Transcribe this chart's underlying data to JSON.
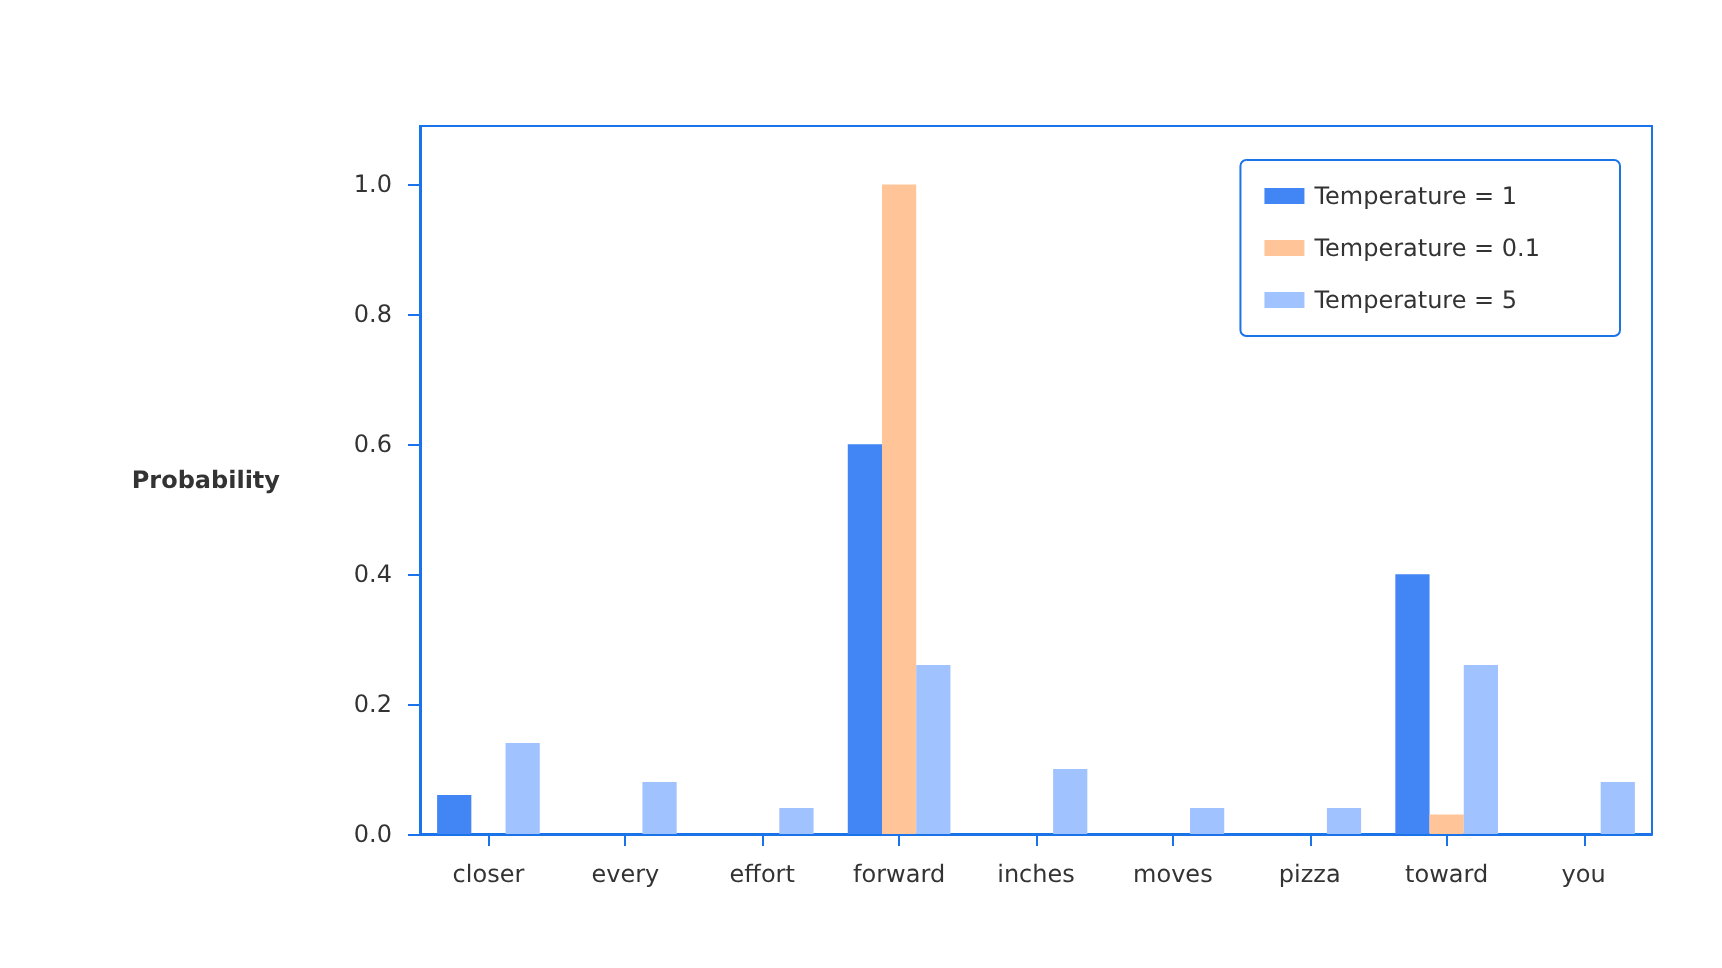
{
  "chart_data": {
    "type": "bar",
    "ylabel": "Probability",
    "categories": [
      "closer",
      "every",
      "effort",
      "forward",
      "inches",
      "moves",
      "pizza",
      "toward",
      "you"
    ],
    "series": [
      {
        "name": "Temperature = 1",
        "color": "#4285f4",
        "values": [
          0.06,
          0,
          0,
          0.6,
          0,
          0,
          0,
          0.4,
          0
        ]
      },
      {
        "name": "Temperature = 0.1",
        "color": "#ffc599",
        "values": [
          0,
          0,
          0,
          1.0,
          0,
          0,
          0,
          0.03,
          0
        ]
      },
      {
        "name": "Temperature = 5",
        "color": "#a0c3ff",
        "values": [
          0.14,
          0.08,
          0.04,
          0.26,
          0.1,
          0.04,
          0.04,
          0.26,
          0.08
        ]
      }
    ],
    "ylim": [
      0,
      1.09
    ],
    "yticks": [
      {
        "value": 0,
        "label": "0.0"
      },
      {
        "value": 0.2,
        "label": "0.2"
      },
      {
        "value": 0.4,
        "label": "0.4"
      },
      {
        "value": 0.6,
        "label": "0.6"
      },
      {
        "value": 0.8,
        "label": "0.8"
      },
      {
        "value": 1,
        "label": "1.0"
      }
    ],
    "grid": false,
    "legend": "top right"
  }
}
